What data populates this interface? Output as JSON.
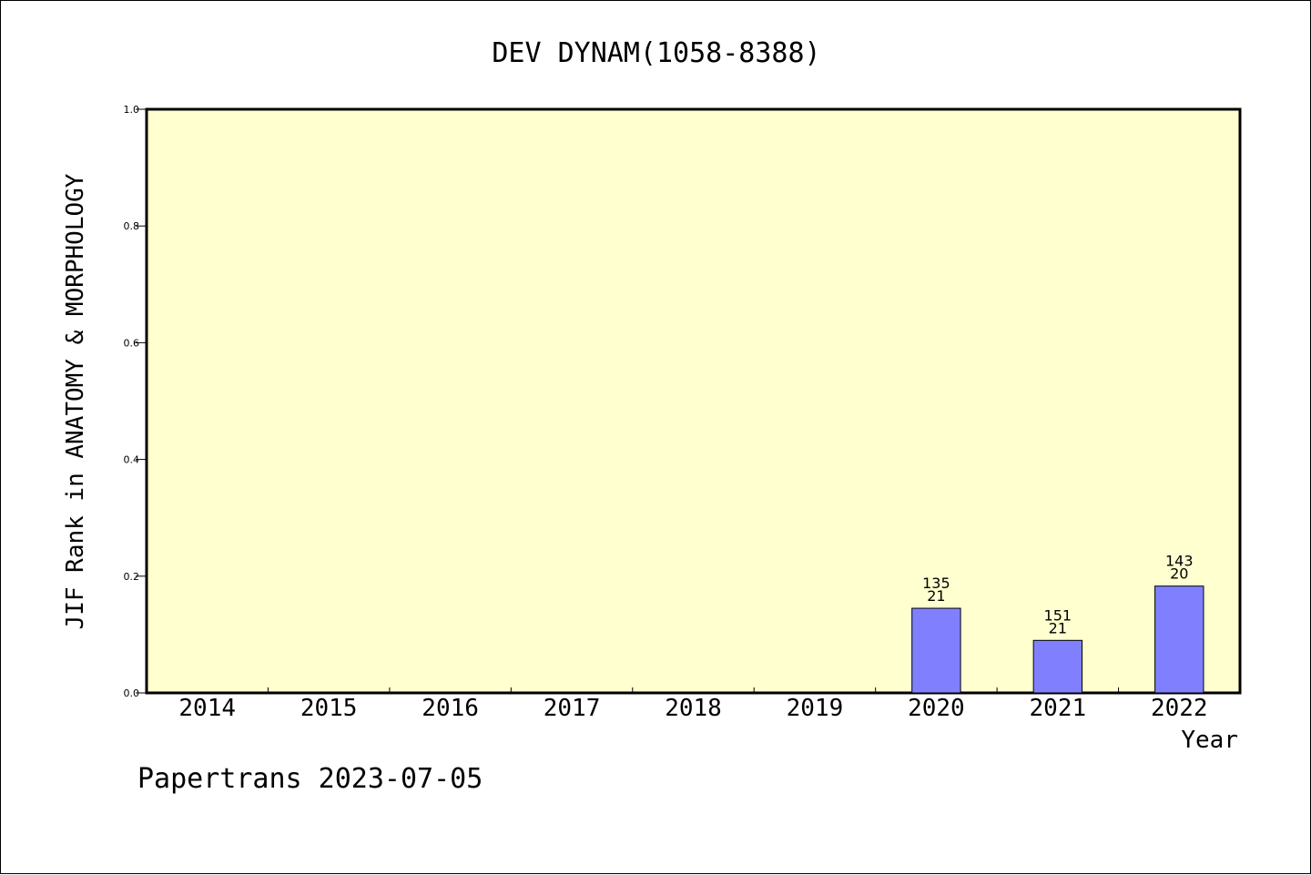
{
  "chart_data": {
    "type": "bar",
    "title": "DEV DYNAM(1058-8388)",
    "ylabel": "JIF Rank in ANATOMY & MORPHOLOGY",
    "xlabel": "Year",
    "categories": [
      "2014",
      "2015",
      "2016",
      "2017",
      "2018",
      "2019",
      "2020",
      "2021",
      "2022"
    ],
    "values": [
      null,
      null,
      null,
      null,
      null,
      null,
      0.145,
      0.09,
      0.183
    ],
    "bar_labels_top": [
      "",
      "",
      "",
      "",
      "",
      "",
      "135",
      "151",
      "143"
    ],
    "bar_labels_bottom": [
      "",
      "",
      "",
      "",
      "",
      "",
      "21",
      "21",
      "20"
    ],
    "ylim": [
      0,
      1.0
    ],
    "yticks": [
      "0.0",
      "0.2",
      "0.4",
      "0.6",
      "0.8",
      "1.0"
    ],
    "grid": false,
    "colors": {
      "plot_background": "#ffffd0",
      "bar_fill": "#8080ff",
      "axis": "#000000"
    }
  },
  "footer": {
    "text": "Papertrans 2023-07-05"
  }
}
